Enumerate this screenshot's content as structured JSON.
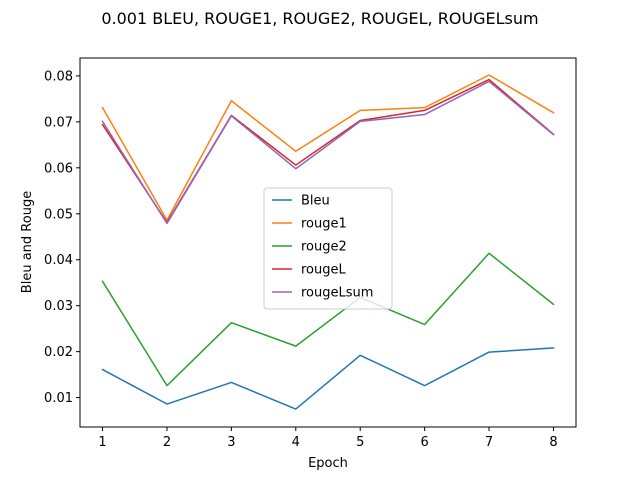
{
  "chart_data": {
    "type": "line",
    "title": "0.001 BLEU, ROUGE1, ROUGE2, ROUGEL, ROUGELsum",
    "xlabel": "Epoch",
    "ylabel": "Bleu and Rouge",
    "x": [
      1,
      2,
      3,
      4,
      5,
      6,
      7,
      8
    ],
    "xlim": [
      0.65,
      8.35
    ],
    "ylim": [
      0.0036,
      0.0839
    ],
    "xticks": [
      "1",
      "2",
      "3",
      "4",
      "5",
      "6",
      "7",
      "8"
    ],
    "yticks": [
      "0.01",
      "0.02",
      "0.03",
      "0.04",
      "0.05",
      "0.06",
      "0.07",
      "0.08"
    ],
    "ytick_values": [
      0.01,
      0.02,
      0.03,
      0.04,
      0.05,
      0.06,
      0.07,
      0.08
    ],
    "grid": false,
    "legend_position": "center",
    "series": [
      {
        "name": "Bleu",
        "color": "#1f77b4",
        "values": [
          0.0161,
          0.0086,
          0.0133,
          0.0075,
          0.0192,
          0.0126,
          0.0199,
          0.0208
        ]
      },
      {
        "name": "rouge1",
        "color": "#ff7f0e",
        "values": [
          0.0731,
          0.0486,
          0.0746,
          0.0636,
          0.0725,
          0.0731,
          0.0802,
          0.072
        ]
      },
      {
        "name": "rouge2",
        "color": "#2ca02c",
        "values": [
          0.0353,
          0.0126,
          0.0263,
          0.0212,
          0.0318,
          0.0259,
          0.0414,
          0.0303
        ]
      },
      {
        "name": "rougeL",
        "color": "#d62728",
        "values": [
          0.0694,
          0.0481,
          0.0714,
          0.0606,
          0.0703,
          0.0725,
          0.0792,
          0.0673
        ]
      },
      {
        "name": "rougeLsum",
        "color": "#9467bd",
        "values": [
          0.0701,
          0.0479,
          0.0713,
          0.0598,
          0.0701,
          0.0716,
          0.0788,
          0.0672
        ]
      }
    ]
  }
}
